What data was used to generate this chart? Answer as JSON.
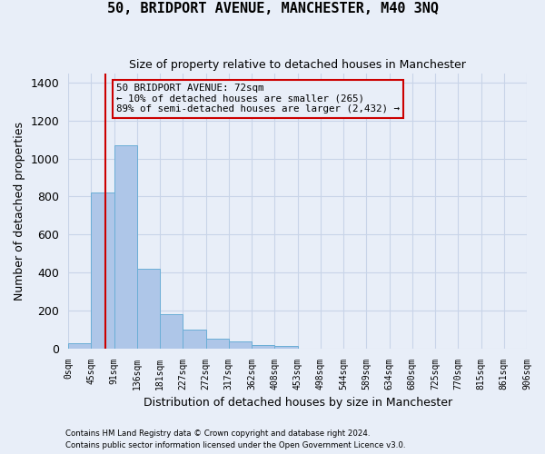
{
  "title": "50, BRIDPORT AVENUE, MANCHESTER, M40 3NQ",
  "subtitle": "Size of property relative to detached houses in Manchester",
  "xlabel": "Distribution of detached houses by size in Manchester",
  "ylabel": "Number of detached properties",
  "footer_line1": "Contains HM Land Registry data © Crown copyright and database right 2024.",
  "footer_line2": "Contains public sector information licensed under the Open Government Licence v3.0.",
  "bar_values": [
    25,
    820,
    1070,
    420,
    180,
    100,
    52,
    35,
    18,
    15,
    0,
    0,
    0,
    0,
    0,
    0,
    0,
    0,
    0,
    0
  ],
  "tick_labels": [
    "0sqm",
    "45sqm",
    "91sqm",
    "136sqm",
    "181sqm",
    "227sqm",
    "272sqm",
    "317sqm",
    "362sqm",
    "408sqm",
    "453sqm",
    "498sqm",
    "544sqm",
    "589sqm",
    "634sqm",
    "680sqm",
    "725sqm",
    "770sqm",
    "815sqm",
    "861sqm",
    "906sqm"
  ],
  "bar_color": "#aec6e8",
  "bar_edge_color": "#6baed6",
  "grid_color": "#c8d4e8",
  "background_color": "#e8eef8",
  "vline_bin": 1.6,
  "vline_color": "#cc0000",
  "annotation_text": "50 BRIDPORT AVENUE: 72sqm\n← 10% of detached houses are smaller (265)\n89% of semi-detached houses are larger (2,432) →",
  "annotation_box_color": "#cc0000",
  "ylim": [
    0,
    1450
  ],
  "yticks": [
    0,
    200,
    400,
    600,
    800,
    1000,
    1200,
    1400
  ],
  "n_bins": 20
}
